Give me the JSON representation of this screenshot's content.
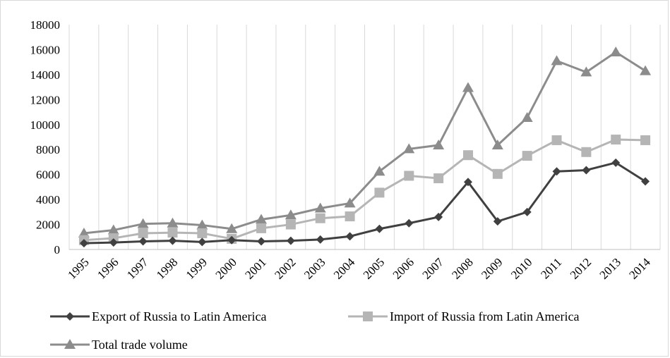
{
  "chart_data": {
    "type": "line",
    "title": "",
    "xlabel": "",
    "ylabel": "",
    "ylim": [
      0,
      18000
    ],
    "yticks": [
      0,
      2000,
      4000,
      6000,
      8000,
      10000,
      12000,
      14000,
      16000,
      18000
    ],
    "grid": "vertical",
    "legend_position": "bottom",
    "x": [
      "1995",
      "1996",
      "1997",
      "1998",
      "1999",
      "2000",
      "2001",
      "2002",
      "2003",
      "2004",
      "2005",
      "2006",
      "2007",
      "2008",
      "2009",
      "2010",
      "2011",
      "2012",
      "2013",
      "2014"
    ],
    "series": [
      {
        "name": "Export of Russia to Latin America",
        "marker": "diamond",
        "color": "#404040",
        "values": [
          500,
          560,
          650,
          700,
          600,
          750,
          650,
          700,
          800,
          1050,
          1650,
          2100,
          2600,
          5400,
          2250,
          3000,
          6250,
          6350,
          6950,
          5450
        ]
      },
      {
        "name": "Import of Russia from Latin America",
        "marker": "square",
        "color": "#b5b5b5",
        "values": [
          750,
          900,
          1300,
          1350,
          1300,
          850,
          1700,
          2000,
          2500,
          2650,
          4550,
          5900,
          5700,
          7550,
          6050,
          7500,
          8750,
          7800,
          8800,
          8750
        ]
      },
      {
        "name": "Total trade volume",
        "marker": "triangle",
        "color": "#8c8c8c",
        "values": [
          1300,
          1550,
          2050,
          2100,
          1950,
          1650,
          2400,
          2750,
          3300,
          3700,
          6250,
          8050,
          8350,
          12950,
          8350,
          10550,
          15100,
          14200,
          15800,
          14300
        ]
      }
    ]
  }
}
